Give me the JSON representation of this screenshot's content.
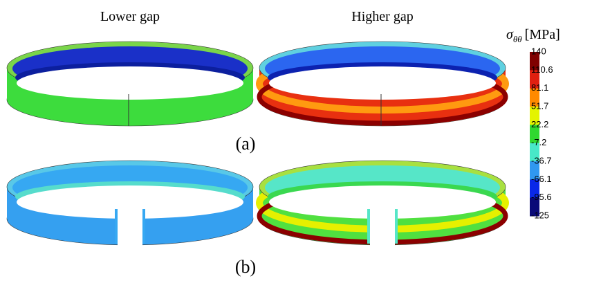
{
  "panels": [
    {
      "label": "Lower gap"
    },
    {
      "label": "Higher gap"
    }
  ],
  "rows": [
    {
      "label": "(a)"
    },
    {
      "label": "(b)"
    }
  ],
  "colorbar": {
    "symbol": "σ",
    "subscript": "θθ",
    "unit": "[MPa]",
    "ticks": [
      "140",
      "110.6",
      "81.1",
      "51.7",
      "22.2",
      "-7.2",
      "-36.7",
      "-66.1",
      "-95.6",
      "-125"
    ]
  }
}
